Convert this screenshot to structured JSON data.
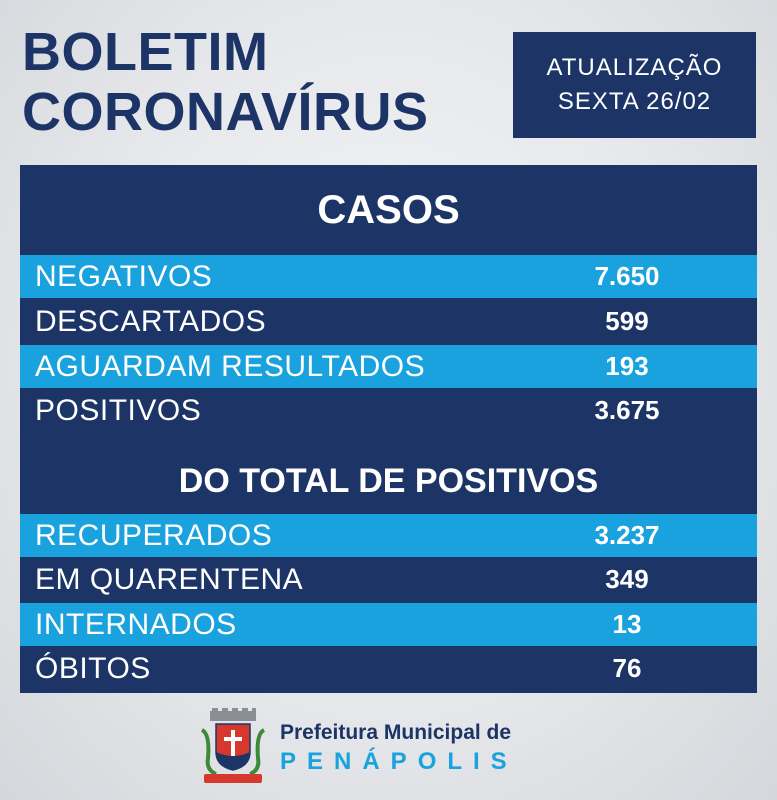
{
  "header": {
    "title_line1": "BOLETIM",
    "title_line2": "CORONAVÍRUS",
    "update_line1": "ATUALIZAÇÃO",
    "update_line2": "SEXTA 26/02"
  },
  "cases": {
    "heading": "CASOS",
    "rows": [
      {
        "label": "NEGATIVOS",
        "value": "7.650"
      },
      {
        "label": "DESCARTADOS",
        "value": "599"
      },
      {
        "label": "AGUARDAM RESULTADOS",
        "value": "193"
      },
      {
        "label": "POSITIVOS",
        "value": "3.675"
      }
    ]
  },
  "positives": {
    "heading": "DO TOTAL DE POSITIVOS",
    "rows": [
      {
        "label": "RECUPERADOS",
        "value": "3.237"
      },
      {
        "label": "EM QUARENTENA",
        "value": "349"
      },
      {
        "label": "INTERNADOS",
        "value": "13"
      },
      {
        "label": "ÓBITOS",
        "value": "76"
      }
    ]
  },
  "footer": {
    "line1": "Prefeitura Municipal de",
    "line2": "PENÁPOLIS",
    "crest_icon": "city-coat-of-arms-icon"
  },
  "colors": {
    "navy": "#1c3566",
    "light_blue": "#1aa2de"
  }
}
